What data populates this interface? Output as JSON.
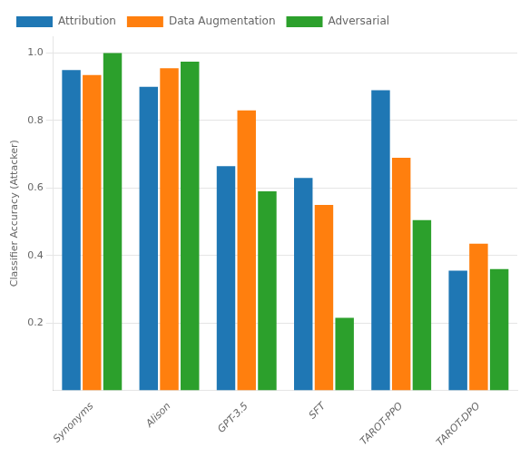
{
  "chart_data": {
    "type": "bar",
    "categories": [
      "Synonyms",
      "Alison",
      "GPT-3.5",
      "SFT",
      "TAROT-PPO",
      "TAROT-DPO"
    ],
    "series": [
      {
        "name": "Attribution",
        "color": "#1f77b4",
        "values": [
          0.95,
          0.9,
          0.665,
          0.63,
          0.89,
          0.355
        ]
      },
      {
        "name": "Data Augmentation",
        "color": "#ff7f0e",
        "values": [
          0.935,
          0.955,
          0.83,
          0.55,
          0.69,
          0.435
        ]
      },
      {
        "name": "Adversarial",
        "color": "#2ca02c",
        "values": [
          1.0,
          0.975,
          0.59,
          0.215,
          0.505,
          0.36
        ]
      }
    ],
    "ylabel": "Classifier Accuracy (Attacker)",
    "ylim": [
      0,
      1.05
    ],
    "yticks": [
      0.2,
      0.4,
      0.6,
      0.8,
      {
        "value": 1.0,
        "label": "1.0"
      }
    ],
    "grid": true,
    "legend": "top"
  }
}
